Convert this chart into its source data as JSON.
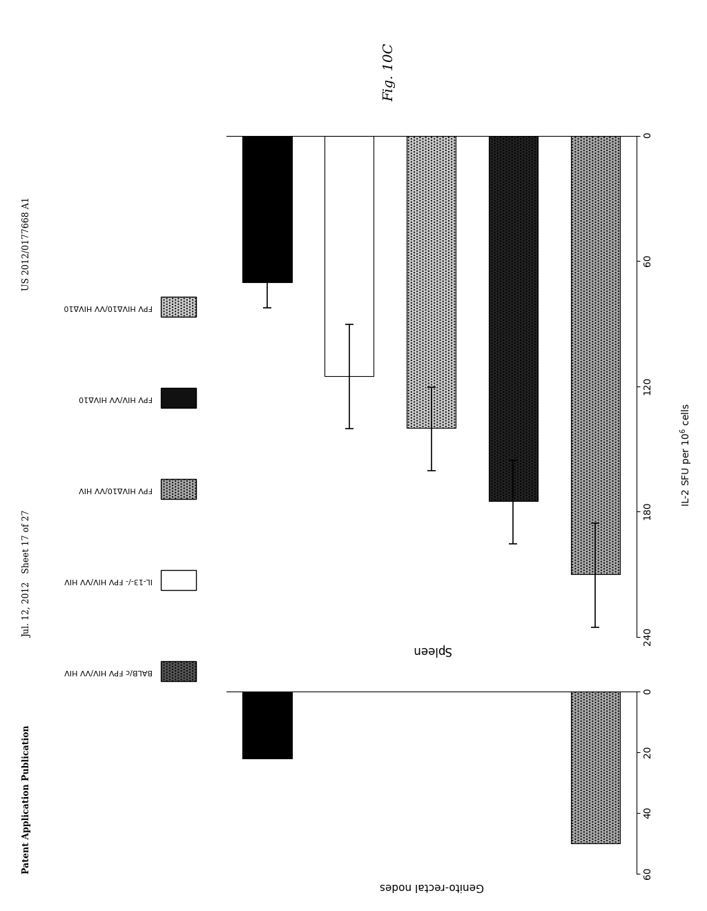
{
  "page_header_left": "Patent Application Publication",
  "page_header_center": "Jul. 12, 2012   Sheet 17 of 27",
  "page_header_right": "US 2012/0177668 A1",
  "fig_label": "Fig. 10C",
  "legend_labels": [
    "BALB/c FPV HIV/VV HIV",
    "IL-13-/- FPV HIV/VV HIV",
    "FPV HIVΔ10/VV HIV",
    "FPV HIV/VV HIVΔ10",
    "FPV HIVΔ10/VV HIVΔ10"
  ],
  "legend_colors": [
    "#555555",
    "#ffffff",
    "#aaaaaa",
    "#111111",
    "#cccccc"
  ],
  "legend_hatches": [
    "....",
    "",
    "....",
    "",
    "...."
  ],
  "legend_edge_colors": [
    "black",
    "black",
    "black",
    "black",
    "black"
  ],
  "spleen_title": "Spleen",
  "spleen_values": [
    210,
    175,
    140,
    115,
    70
  ],
  "spleen_errors": [
    25,
    20,
    20,
    25,
    12
  ],
  "spleen_colors": [
    "#aaaaaa",
    "#222222",
    "#cccccc",
    "#ffffff",
    "#000000"
  ],
  "spleen_hatches": [
    "....",
    "....",
    "....",
    "",
    ""
  ],
  "spleen_xlim_max": 240,
  "spleen_xticks": [
    0,
    60,
    120,
    180,
    240
  ],
  "spleen_xticklabels": [
    "0",
    "60",
    "120",
    "180",
    "240"
  ],
  "genito_title": "Genito-rectal nodes",
  "genito_values": [
    50,
    0,
    0,
    0,
    22
  ],
  "genito_colors": [
    "#aaaaaa",
    "#ffffff",
    "#cccccc",
    "#555555",
    "#000000"
  ],
  "genito_hatches": [
    "....",
    "",
    "....",
    "....",
    ""
  ],
  "genito_xlim_max": 60,
  "genito_xticks": [
    0,
    20,
    40,
    60
  ],
  "genito_xticklabels": [
    "0",
    "20",
    "40",
    "60"
  ],
  "shared_xlabel": "IL-2 SFU per 10^6 cells",
  "background_color": "#ffffff"
}
